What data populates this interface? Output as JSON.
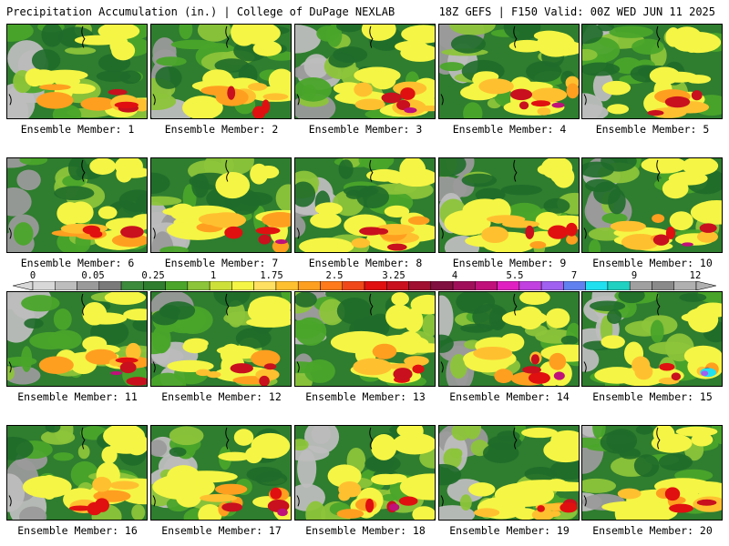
{
  "header": {
    "title_left": "Precipitation Accumulation (in.) | College of DuPage NEXLAB",
    "title_right": "18Z GEFS | F150 Valid: 00Z WED JUN 11 2025"
  },
  "legend": {
    "labels": [
      "0",
      "0.05",
      "0.25",
      "1",
      "1.75",
      "2.5",
      "3.25",
      "4",
      "5.5",
      "7",
      "9",
      "12"
    ],
    "colors": [
      "#d8d8d8",
      "#bdbdbd",
      "#9a9a9a",
      "#7a7a7a",
      "#3c8a3c",
      "#2f7d2f",
      "#4aa52a",
      "#8cc43a",
      "#cde03a",
      "#f5f545",
      "#ffe060",
      "#ffc030",
      "#ff9f20",
      "#ff7a1a",
      "#f04818",
      "#e01010",
      "#c8101e",
      "#a01030",
      "#801040",
      "#a0105a",
      "#c0107a",
      "#e020c0",
      "#c040e0",
      "#a060f0",
      "#6080f0",
      "#20e0f0",
      "#20d0c0",
      "#a0a0a0",
      "#8a8a8a",
      "#b0b0b0"
    ]
  },
  "members": [
    {
      "label": "Ensemble Member: 1"
    },
    {
      "label": "Ensemble Member: 2"
    },
    {
      "label": "Ensemble Member: 3"
    },
    {
      "label": "Ensemble Member: 4"
    },
    {
      "label": "Ensemble Member: 5"
    },
    {
      "label": "Ensemble Member: 6"
    },
    {
      "label": "Ensemble Member: 7"
    },
    {
      "label": "Ensemble Member: 8"
    },
    {
      "label": "Ensemble Member: 9"
    },
    {
      "label": "Ensemble Member: 10"
    },
    {
      "label": "Ensemble Member: 11"
    },
    {
      "label": "Ensemble Member: 12"
    },
    {
      "label": "Ensemble Member: 13"
    },
    {
      "label": "Ensemble Member: 14"
    },
    {
      "label": "Ensemble Member: 15"
    },
    {
      "label": "Ensemble Member: 16"
    },
    {
      "label": "Ensemble Member: 17"
    },
    {
      "label": "Ensemble Member: 18"
    },
    {
      "label": "Ensemble Member: 19"
    },
    {
      "label": "Ensemble Member: 20"
    }
  ]
}
